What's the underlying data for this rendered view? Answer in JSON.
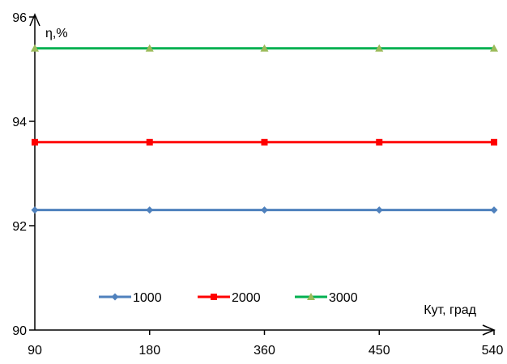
{
  "chart_data": {
    "type": "line",
    "categories": [
      "90",
      "180",
      "360",
      "450",
      "540"
    ],
    "series": [
      {
        "name": "1000",
        "values": [
          92.3,
          92.3,
          92.3,
          92.3,
          92.3
        ],
        "color": "#4f81bd",
        "marker": "diamond"
      },
      {
        "name": "2000",
        "values": [
          93.6,
          93.6,
          93.6,
          93.6,
          93.6
        ],
        "color": "#ff0000",
        "marker": "square"
      },
      {
        "name": "3000",
        "values": [
          95.4,
          95.4,
          95.4,
          95.4,
          95.4
        ],
        "color": "#00b050",
        "marker": "triangle",
        "marker_color": "#9bbb59"
      }
    ],
    "ylabel": "η,%",
    "xlabel": "Кут, град",
    "ylim": [
      90,
      96
    ],
    "yticks": [
      "90",
      "92",
      "94",
      "96"
    ],
    "grid": false,
    "legend_position": "bottom-left"
  }
}
